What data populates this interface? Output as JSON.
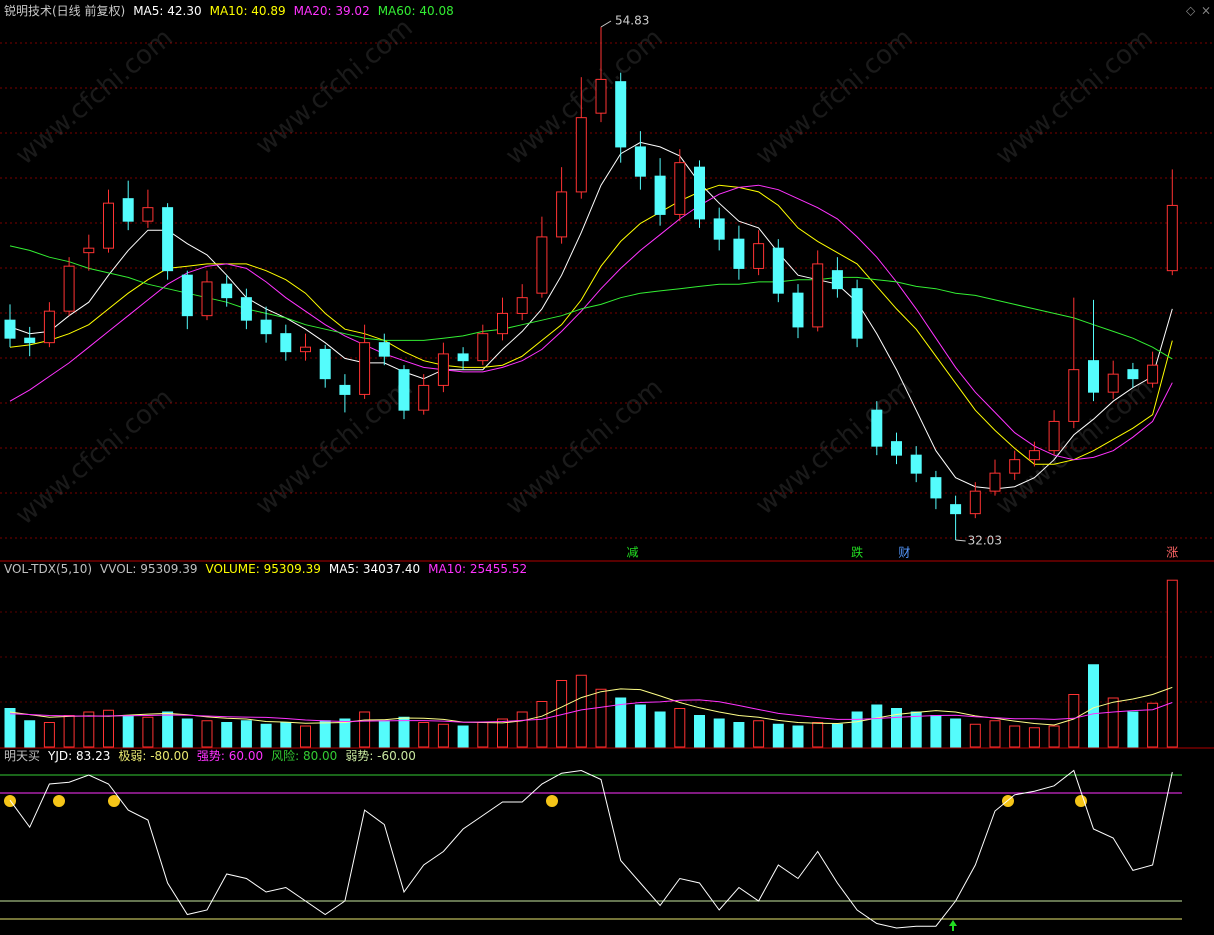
{
  "chart_data": [
    {
      "type": "candlestick",
      "title": "锐明技术(日线 前复权)",
      "legend": [
        {
          "text": "MA5: 42.30",
          "color": "#ffffff"
        },
        {
          "text": "MA10: 40.89",
          "color": "#ffff00"
        },
        {
          "text": "MA20: 39.02",
          "color": "#ff33ff"
        },
        {
          "text": "MA60: 40.08",
          "color": "#33ee33"
        }
      ],
      "ylim": [
        31.14,
        56.03
      ],
      "up_color": "#ff3333",
      "down_color": "#54fcfc",
      "open": [
        41.8,
        41.0,
        40.8,
        42.2,
        44.8,
        45.0,
        47.2,
        46.2,
        46.8,
        43.8,
        42.0,
        43.4,
        42.8,
        41.8,
        41.2,
        40.4,
        40.5,
        38.9,
        38.5,
        40.8,
        39.6,
        37.8,
        38.9,
        40.3,
        40.0,
        41.2,
        42.1,
        43.0,
        45.5,
        47.5,
        51.0,
        52.4,
        49.5,
        48.2,
        46.5,
        48.6,
        46.3,
        45.4,
        44.1,
        45.0,
        43.0,
        41.5,
        44.0,
        43.2,
        37.8,
        36.4,
        35.8,
        34.8,
        33.6,
        33.2,
        34.2,
        35.0,
        35.6,
        36.0,
        37.3,
        40.0,
        38.6,
        39.6,
        39.0,
        44.0
      ],
      "high": [
        42.5,
        41.5,
        42.6,
        44.6,
        45.6,
        47.6,
        48.0,
        47.6,
        47.0,
        44.0,
        44.0,
        43.8,
        43.2,
        42.4,
        41.6,
        41.2,
        40.7,
        39.4,
        41.6,
        41.2,
        39.8,
        39.4,
        40.8,
        40.6,
        41.6,
        42.8,
        43.4,
        46.4,
        48.6,
        52.6,
        54.83,
        52.8,
        50.2,
        49.0,
        49.4,
        48.9,
        46.8,
        46.0,
        45.8,
        45.4,
        43.4,
        44.9,
        44.6,
        43.6,
        38.2,
        36.8,
        36.2,
        35.1,
        34.0,
        34.6,
        35.6,
        36.0,
        36.4,
        37.8,
        42.8,
        42.7,
        40.0,
        39.9,
        40.4,
        48.5
      ],
      "low": [
        40.6,
        40.2,
        40.6,
        42.0,
        44.0,
        44.8,
        45.8,
        45.9,
        43.6,
        41.4,
        41.8,
        42.4,
        41.4,
        40.8,
        40.0,
        40.0,
        38.8,
        37.7,
        38.3,
        39.8,
        37.4,
        37.6,
        38.6,
        39.6,
        39.8,
        40.9,
        41.8,
        42.8,
        45.2,
        47.2,
        50.6,
        48.8,
        47.6,
        46.0,
        46.2,
        45.9,
        44.9,
        43.6,
        43.8,
        42.6,
        41.0,
        41.3,
        42.8,
        40.6,
        35.8,
        35.4,
        34.6,
        33.4,
        32.03,
        33.0,
        34.0,
        34.7,
        35.3,
        35.8,
        37.0,
        38.2,
        38.3,
        38.8,
        38.8,
        43.8
      ],
      "close": [
        41.0,
        40.8,
        42.2,
        44.2,
        45.0,
        47.0,
        46.2,
        46.8,
        44.0,
        42.0,
        43.5,
        42.8,
        41.8,
        41.2,
        40.4,
        40.6,
        39.2,
        38.5,
        40.8,
        40.2,
        37.8,
        38.9,
        40.3,
        40.0,
        41.2,
        42.1,
        42.8,
        45.5,
        47.5,
        50.8,
        52.5,
        49.5,
        48.2,
        46.5,
        48.8,
        46.3,
        45.4,
        44.1,
        45.2,
        43.0,
        41.5,
        44.3,
        43.2,
        41.0,
        36.2,
        35.8,
        35.0,
        33.9,
        33.2,
        34.2,
        35.0,
        35.6,
        36.0,
        37.3,
        39.6,
        38.6,
        39.4,
        39.2,
        39.8,
        46.9
      ],
      "series": [
        {
          "name": "MA5",
          "color": "#ffffff",
          "values": [
            41.5,
            41.2,
            41.3,
            42.0,
            42.6,
            43.8,
            44.9,
            45.8,
            45.8,
            45.2,
            44.7,
            43.8,
            42.8,
            42.3,
            41.9,
            41.4,
            40.8,
            40.1,
            39.9,
            39.9,
            39.5,
            39.2,
            39.6,
            39.6,
            39.6,
            40.5,
            41.3,
            42.3,
            43.8,
            45.7,
            47.8,
            49.2,
            49.7,
            49.5,
            49.1,
            47.9,
            47.0,
            46.2,
            45.9,
            44.8,
            43.8,
            43.6,
            43.4,
            42.6,
            41.2,
            39.6,
            37.8,
            36.0,
            34.8,
            34.4,
            34.3,
            34.4,
            34.8,
            35.6,
            36.7,
            37.4,
            38.2,
            38.8,
            39.3,
            42.3
          ]
        },
        {
          "name": "MA10",
          "color": "#ffff00",
          "values": [
            40.6,
            40.7,
            40.9,
            41.2,
            41.6,
            42.3,
            43.0,
            43.6,
            44.1,
            44.2,
            44.3,
            44.3,
            44.3,
            44.0,
            43.6,
            43.0,
            42.1,
            41.4,
            41.2,
            40.9,
            40.4,
            40.0,
            39.8,
            39.7,
            39.7,
            39.8,
            40.2,
            40.9,
            41.6,
            42.7,
            44.2,
            45.3,
            46.1,
            46.6,
            47.1,
            47.5,
            47.8,
            47.7,
            47.5,
            46.9,
            45.9,
            45.3,
            44.8,
            44.3,
            43.3,
            42.3,
            41.4,
            40.2,
            39.0,
            37.8,
            36.9,
            36.1,
            35.4,
            35.4,
            35.6,
            36.0,
            36.5,
            37.0,
            37.6,
            40.89
          ]
        },
        {
          "name": "MA20",
          "color": "#ff33ff",
          "values": [
            38.2,
            38.7,
            39.3,
            39.9,
            40.6,
            41.3,
            42.0,
            42.7,
            43.4,
            43.9,
            44.2,
            44.3,
            44.1,
            43.5,
            42.8,
            42.2,
            41.6,
            41.1,
            40.7,
            40.3,
            40.0,
            39.7,
            39.6,
            39.5,
            39.5,
            39.7,
            40.0,
            40.5,
            41.3,
            42.2,
            43.2,
            44.1,
            44.9,
            45.6,
            46.3,
            46.9,
            47.4,
            47.7,
            47.8,
            47.6,
            47.2,
            46.8,
            46.3,
            45.5,
            44.6,
            43.5,
            42.3,
            41.0,
            39.7,
            38.6,
            37.7,
            36.8,
            36.2,
            35.8,
            35.6,
            35.7,
            36.0,
            36.6,
            37.3,
            39.02
          ]
        },
        {
          "name": "MA60",
          "color": "#33ee33",
          "values": [
            45.1,
            44.9,
            44.6,
            44.4,
            44.1,
            43.9,
            43.7,
            43.4,
            43.2,
            43.0,
            42.8,
            42.6,
            42.3,
            42.1,
            41.9,
            41.6,
            41.4,
            41.2,
            41.0,
            40.9,
            40.9,
            40.9,
            41.0,
            41.1,
            41.3,
            41.4,
            41.6,
            41.8,
            42.0,
            42.3,
            42.5,
            42.8,
            43.0,
            43.1,
            43.2,
            43.3,
            43.4,
            43.4,
            43.5,
            43.5,
            43.6,
            43.6,
            43.7,
            43.7,
            43.6,
            43.5,
            43.3,
            43.2,
            43.0,
            42.9,
            42.7,
            42.5,
            42.3,
            42.1,
            41.9,
            41.6,
            41.3,
            41.0,
            40.6,
            40.08
          ]
        }
      ],
      "high_mark": {
        "at": 30,
        "value": 54.83
      },
      "low_mark": {
        "at": 48,
        "value": 32.03
      },
      "signals": [
        {
          "at": 31.6,
          "text": "减",
          "color": "#22dd22"
        },
        {
          "at": 43,
          "text": "跌",
          "color": "#22dd22"
        },
        {
          "at": 45.4,
          "text": "财",
          "color": "#5599ff"
        },
        {
          "at": 59,
          "text": "涨",
          "color": "#ff6666"
        }
      ],
      "watermark": "www.cfchi.com"
    },
    {
      "type": "bar",
      "legend": [
        {
          "text": "VOL-TDX(5,10)",
          "color": "#c0c0c0"
        },
        {
          "text": "VVOL: 95309.39",
          "color": "#c0c0c0"
        },
        {
          "text": "VOLUME: 95309.39",
          "color": "#ffff00"
        },
        {
          "text": "MA5: 34037.40",
          "color": "#ffffff"
        },
        {
          "text": "MA10: 25455.52",
          "color": "#ff33ff"
        }
      ],
      "ylim": [
        0,
        100000
      ],
      "values": [
        22000,
        15000,
        14000,
        18000,
        20000,
        21000,
        18000,
        17000,
        20000,
        16000,
        15000,
        14000,
        15000,
        13000,
        14000,
        12000,
        15000,
        16000,
        20000,
        15000,
        17000,
        14000,
        13000,
        12000,
        14000,
        16000,
        20000,
        26000,
        38000,
        41000,
        33000,
        28000,
        24000,
        20000,
        22000,
        18000,
        16000,
        14000,
        15000,
        13000,
        12000,
        14000,
        13000,
        20000,
        24000,
        22000,
        20000,
        18000,
        16000,
        13000,
        15000,
        12000,
        11000,
        12000,
        30000,
        47000,
        28000,
        20000,
        25000,
        95309.39
      ],
      "series": [
        {
          "name": "MA5",
          "color": "#ffff88",
          "values": [
            20000,
            18500,
            17000,
            17500,
            17800,
            17600,
            18200,
            18800,
            19200,
            18400,
            17200,
            16400,
            16000,
            14600,
            14200,
            13600,
            13800,
            14000,
            15400,
            15600,
            16600,
            16400,
            15800,
            14200,
            14000,
            13800,
            15000,
            17600,
            22800,
            28200,
            31600,
            33200,
            32800,
            29200,
            25400,
            22400,
            20000,
            18000,
            17000,
            15200,
            14000,
            13600,
            13400,
            14400,
            16600,
            18600,
            19800,
            20800,
            20000,
            17800,
            16400,
            14800,
            13400,
            12600,
            16000,
            22400,
            25600,
            27400,
            30000,
            34037.4
          ]
        },
        {
          "name": "MA10",
          "color": "#ff33ff",
          "values": [
            19000,
            18600,
            18000,
            17800,
            17600,
            17800,
            17900,
            18000,
            18300,
            18100,
            17700,
            17300,
            17100,
            16900,
            16300,
            15400,
            14900,
            14600,
            14800,
            14900,
            15100,
            15100,
            14800,
            14100,
            14300,
            14600,
            15200,
            15900,
            18500,
            21200,
            22700,
            24300,
            25400,
            25800,
            26700,
            26900,
            25900,
            23700,
            21400,
            19200,
            18000,
            16800,
            15800,
            15800,
            16300,
            16900,
            17500,
            18000,
            18100,
            17300,
            16700,
            16100,
            16100,
            15800,
            16400,
            19000,
            20000,
            20800,
            21300,
            25455.52
          ]
        }
      ]
    },
    {
      "type": "line",
      "legend": [
        {
          "text": "明天买",
          "color": "#c0c0c0"
        },
        {
          "text": "YJD: 83.23",
          "color": "#ffffff"
        }
      ],
      "levels": [
        {
          "value": -80,
          "label": "极弱: -80.00",
          "color": "#e8e870"
        },
        {
          "value": 60,
          "label": "强势: 60.00",
          "color": "#ff33ff"
        },
        {
          "value": 80,
          "label": "风险: 80.00",
          "color": "#33cc33"
        },
        {
          "value": -60,
          "label": "弱势: -60.00",
          "color": "#c8e8a0"
        }
      ],
      "ylim": [
        -93.3,
        108.9
      ],
      "series": [
        {
          "name": "YJD",
          "color": "#ffffff",
          "values": [
            52,
            22,
            70,
            72,
            80,
            70,
            41,
            30,
            -40,
            -75,
            -70,
            -30,
            -35,
            -50,
            -45,
            -60,
            -75,
            -60,
            41,
            25,
            -50,
            -20,
            -5,
            20,
            35,
            50,
            50,
            70,
            82,
            85,
            75,
            -15,
            -40,
            -65,
            -35,
            -40,
            -70,
            -45,
            -60,
            -20,
            -35,
            -5,
            -40,
            -70,
            -85,
            -90,
            -88,
            -88,
            -60,
            -20,
            40,
            58,
            62,
            68,
            85,
            20,
            10,
            -26,
            -20,
            83.23
          ]
        }
      ]
    }
  ]
}
